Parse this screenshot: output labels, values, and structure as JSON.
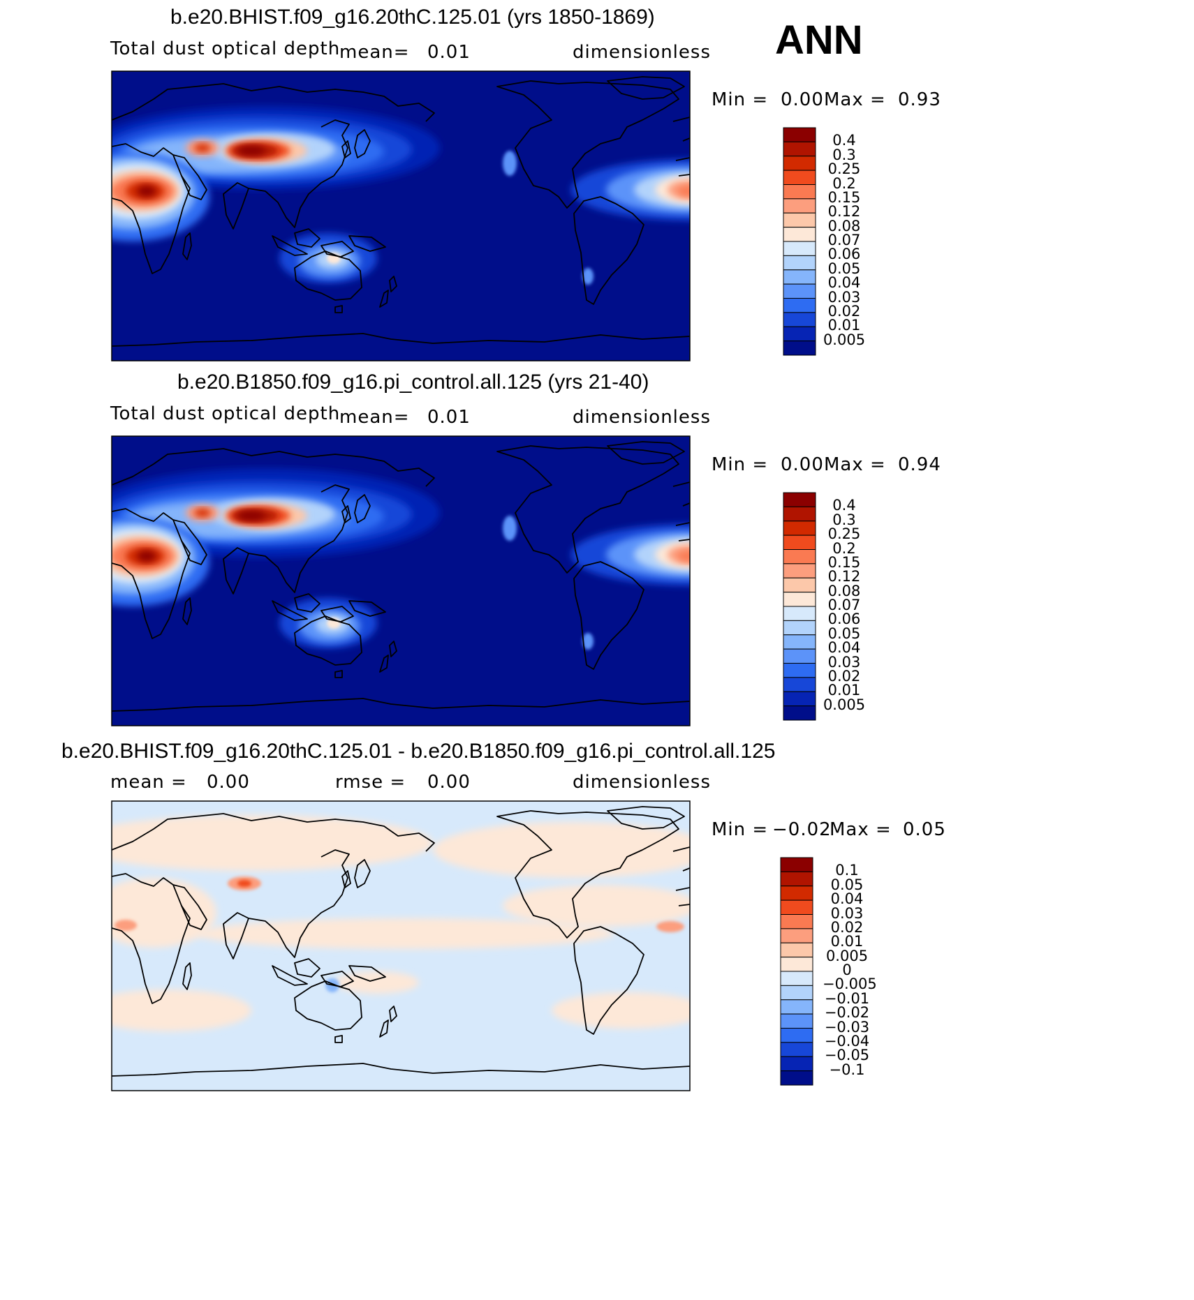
{
  "season": "ANN",
  "units": "dimensionless",
  "panels": [
    {
      "case": "b.e20.BHIST.f09_g16.20thC.125.01 (yrs 1850-1869)",
      "variable": "Total dust optical depth",
      "mean_label": "mean=",
      "mean_value": "0.01",
      "min_label": "Min =",
      "min_value": "0.00",
      "max_label": "Max =",
      "max_value": "0.93"
    },
    {
      "case": "b.e20.B1850.f09_g16.pi_control.all.125 (yrs 21-40)",
      "variable": "Total dust optical depth",
      "mean_label": "mean=",
      "mean_value": "0.01",
      "min_label": "Min =",
      "min_value": "0.00",
      "max_label": "Max =",
      "max_value": "0.94"
    },
    {
      "case": "b.e20.BHIST.f09_g16.20thC.125.01 - b.e20.B1850.f09_g16.pi_control.all.125",
      "mean_label": "mean =",
      "mean_value": "0.00",
      "rmse_label": "rmse =",
      "rmse_value": "0.00",
      "min_label": "Min =",
      "min_value": "−0.02",
      "max_label": "Max =",
      "max_value": "0.05"
    }
  ],
  "chart_data": [
    {
      "type": "heatmap",
      "title": "b.e20.BHIST.f09_g16.20thC.125.01 (yrs 1850-1869)",
      "projection": "global cylindrical equidistant, centered on Pacific",
      "colorbar_levels": [
        "0.4",
        "0.3",
        "0.25",
        "0.2",
        "0.15",
        "0.12",
        "0.08",
        "0.07",
        "0.06",
        "0.05",
        "0.04",
        "0.03",
        "0.02",
        "0.01",
        "0.005"
      ],
      "colorbar_colors": [
        "#8b0000",
        "#b01400",
        "#d22a00",
        "#f04b1e",
        "#fa7a52",
        "#fc9e7e",
        "#fcc8aa",
        "#fde8d8",
        "#d7e9fb",
        "#b2d3fb",
        "#85b5fb",
        "#5c93f9",
        "#2e6cf2",
        "#1747d8",
        "#0624b4",
        "#000e8a"
      ],
      "min": 0.0,
      "max": 0.93,
      "mean": 0.01
    },
    {
      "type": "heatmap",
      "title": "b.e20.B1850.f09_g16.pi_control.all.125 (yrs 21-40)",
      "projection": "global cylindrical equidistant, centered on Pacific",
      "colorbar_levels": [
        "0.4",
        "0.3",
        "0.25",
        "0.2",
        "0.15",
        "0.12",
        "0.08",
        "0.07",
        "0.06",
        "0.05",
        "0.04",
        "0.03",
        "0.02",
        "0.01",
        "0.005"
      ],
      "colorbar_colors": [
        "#8b0000",
        "#b01400",
        "#d22a00",
        "#f04b1e",
        "#fa7a52",
        "#fc9e7e",
        "#fcc8aa",
        "#fde8d8",
        "#d7e9fb",
        "#b2d3fb",
        "#85b5fb",
        "#5c93f9",
        "#2e6cf2",
        "#1747d8",
        "#0624b4",
        "#000e8a"
      ],
      "min": 0.0,
      "max": 0.94,
      "mean": 0.01
    },
    {
      "type": "heatmap",
      "title": "b.e20.BHIST.f09_g16.20thC.125.01 - b.e20.B1850.f09_g16.pi_control.all.125",
      "projection": "global cylindrical equidistant, centered on Pacific",
      "colorbar_levels": [
        "0.1",
        "0.05",
        "0.04",
        "0.03",
        "0.02",
        "0.01",
        "0.005",
        "0",
        "−0.005",
        "−0.01",
        "−0.02",
        "−0.03",
        "−0.04",
        "−0.05",
        "−0.1"
      ],
      "colorbar_colors": [
        "#8b0000",
        "#b01400",
        "#d22a00",
        "#f04b1e",
        "#fa7a52",
        "#fc9e7e",
        "#fcc8aa",
        "#fde8d8",
        "#d7e9fb",
        "#b2d3fb",
        "#85b5fb",
        "#5c93f9",
        "#2e6cf2",
        "#1747d8",
        "#0624b4",
        "#000e8a"
      ],
      "min": -0.02,
      "max": 0.05,
      "mean": 0.0,
      "rmse": 0.0
    }
  ]
}
